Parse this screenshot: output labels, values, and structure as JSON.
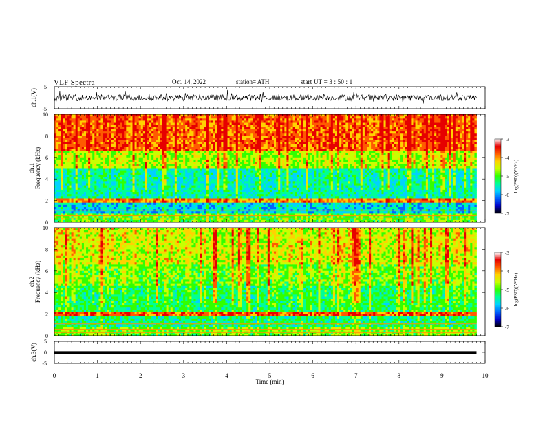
{
  "header": {
    "title": "VLF  Spectra",
    "date": "Oct. 14, 2022",
    "station": "station= ATH",
    "start": "start  UT  =   3  : 50 : 1"
  },
  "chart_data": [
    {
      "type": "line",
      "panel": "ch1-waveform",
      "ylabel": "ch.1(V)",
      "ylim": [
        -5,
        5
      ],
      "yticks": [
        "5",
        "-5"
      ],
      "xlim": [
        0,
        10
      ],
      "series": [
        {
          "values": [
            0,
            0.9,
            -1.4,
            1.2,
            -0.8,
            1.6,
            -1.1,
            0.7,
            -1.3,
            1.0,
            -0.6,
            1.4,
            -1.2,
            0.8,
            -0.9,
            1.1,
            -1.5,
            0.6,
            -0.7,
            1.3,
            -1.0,
            0.9,
            -1.2,
            1.5,
            -0.8,
            0.7,
            -1.1,
            1.2,
            -0.9,
            1.0,
            -1.3,
            0.6,
            -1.0,
            1.4,
            -0.7,
            0.8,
            -1.4,
            1.1,
            -0.6,
            0.9,
            -1.2,
            1.3,
            -0.8,
            1.0,
            -1.1,
            0.7,
            -1.3,
            1.2,
            -0.9,
            0.6,
            -1.0
          ]
        }
      ],
      "x_end": 9.8
    },
    {
      "type": "heatmap",
      "panel": "ch1-spectrogram",
      "ylabel_top": "ch.1",
      "ylabel": "Frequency (kHz)",
      "ylim": [
        0,
        10
      ],
      "yticks": [
        "0",
        "2",
        "4",
        "6",
        "8",
        "10"
      ],
      "xlim": [
        0,
        10
      ],
      "x_end": 9.8,
      "colorbar": {
        "label": "log(PSD)(V²/Hz)",
        "range": [
          -7,
          -3
        ],
        "ticks": [
          "-3",
          "-4",
          "-5",
          "-6",
          "-7"
        ]
      }
    },
    {
      "type": "heatmap",
      "panel": "ch2-spectrogram",
      "ylabel_top": "ch.2",
      "ylabel": "Frequency (kHz)",
      "ylim": [
        0,
        10
      ],
      "yticks": [
        "0",
        "2",
        "4",
        "6",
        "8",
        "10"
      ],
      "xlim": [
        0,
        10
      ],
      "x_end": 9.8,
      "colorbar": {
        "label": "log(PSD)(V²/Hz)",
        "range": [
          -7,
          -3
        ],
        "ticks": [
          "-3",
          "-4",
          "-5",
          "-6",
          "-7"
        ]
      }
    },
    {
      "type": "line",
      "panel": "ch3-waveform",
      "ylabel": "ch.3(V)",
      "ylim": [
        -5,
        5
      ],
      "yticks": [
        "5",
        "0",
        "-5"
      ],
      "xlim": [
        0,
        10
      ],
      "xlabel": "Time  (min)",
      "xticks": [
        "0",
        "1",
        "2",
        "3",
        "4",
        "5",
        "6",
        "7",
        "8",
        "9",
        "10"
      ],
      "series": [
        {
          "values": [
            -0.1,
            -0.1
          ]
        }
      ],
      "x_end": 9.8
    }
  ],
  "colors": {
    "scale": [
      "#000000",
      "#0000c8",
      "#0064ff",
      "#00d2ff",
      "#00ff96",
      "#32ff00",
      "#c8ff00",
      "#ffd200",
      "#ff5a00",
      "#e60000",
      "#ffffff"
    ]
  }
}
